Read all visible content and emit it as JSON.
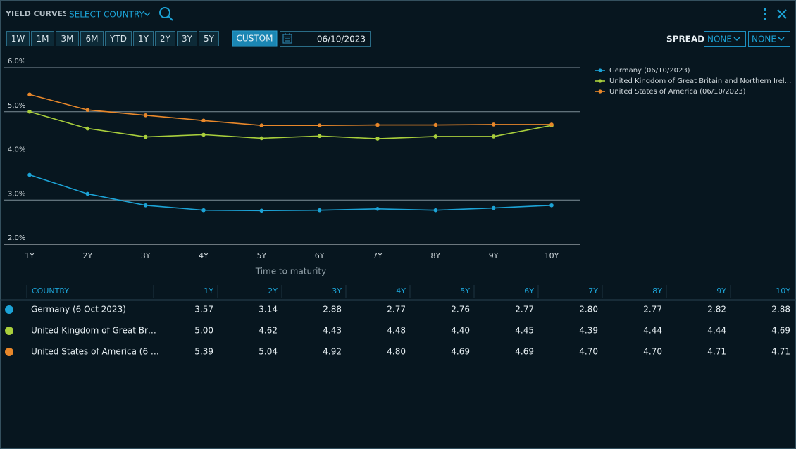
{
  "header": {
    "title": "YIELD CURVES",
    "country_select": "SELECT COUNTRY"
  },
  "toolbar": {
    "periods": [
      "1W",
      "1M",
      "3M",
      "6M",
      "YTD",
      "1Y",
      "2Y",
      "3Y",
      "5Y"
    ],
    "custom": "CUSTOM",
    "date": "06/10/2023",
    "spread_label": "SPREAD:",
    "spread_selects": [
      "NONE",
      "NONE"
    ]
  },
  "chart_data": {
    "type": "line",
    "x_label": "Time to maturity",
    "categories": [
      "1Y",
      "2Y",
      "3Y",
      "4Y",
      "5Y",
      "6Y",
      "7Y",
      "8Y",
      "9Y",
      "10Y"
    ],
    "series": [
      {
        "name": "Germany (06/10/2023)",
        "color": "#1ca3d6",
        "values": [
          3.57,
          3.14,
          2.88,
          2.77,
          2.76,
          2.77,
          2.8,
          2.77,
          2.82,
          2.88
        ]
      },
      {
        "name": "United Kingdom of Great Britain and Northern Irel...",
        "color": "#a9cf3c",
        "values": [
          5.0,
          4.62,
          4.43,
          4.48,
          4.4,
          4.45,
          4.39,
          4.44,
          4.44,
          4.69
        ]
      },
      {
        "name": "United States of America (06/10/2023)",
        "color": "#e8872a",
        "values": [
          5.39,
          5.04,
          4.92,
          4.8,
          4.69,
          4.69,
          4.7,
          4.7,
          4.71,
          4.71
        ]
      }
    ],
    "ylim": [
      2,
      6
    ],
    "yticks": [
      {
        "value": 2,
        "label": "2.0%"
      },
      {
        "value": 3,
        "label": "3.0%"
      },
      {
        "value": 4,
        "label": "4.0%"
      },
      {
        "value": 5,
        "label": "5.0%"
      },
      {
        "value": 6,
        "label": "6.0%"
      }
    ],
    "grid": true,
    "legend": "top-right"
  },
  "table": {
    "columns": [
      "COUNTRY",
      "1Y",
      "2Y",
      "3Y",
      "4Y",
      "5Y",
      "6Y",
      "7Y",
      "8Y",
      "9Y",
      "10Y"
    ],
    "rows": [
      [
        "Germany (6 Oct 2023)",
        "3.57",
        "3.14",
        "2.88",
        "2.77",
        "2.76",
        "2.77",
        "2.80",
        "2.77",
        "2.82",
        "2.88"
      ],
      [
        "United Kingdom of Great Br…",
        "5.00",
        "4.62",
        "4.43",
        "4.48",
        "4.40",
        "4.45",
        "4.39",
        "4.44",
        "4.44",
        "4.69"
      ],
      [
        "United States of America (6 …",
        "5.39",
        "5.04",
        "4.92",
        "4.80",
        "4.69",
        "4.69",
        "4.70",
        "4.70",
        "4.71",
        "4.71"
      ]
    ]
  }
}
